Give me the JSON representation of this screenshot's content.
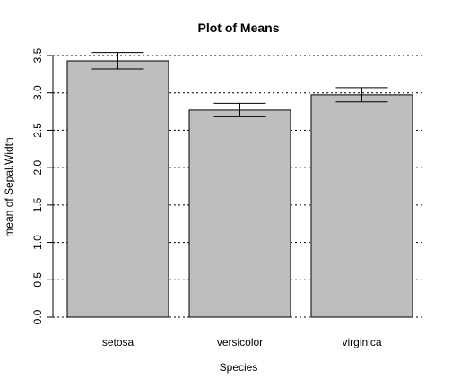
{
  "chart_data": {
    "type": "bar",
    "title": "Plot of Means",
    "xlabel": "Species",
    "ylabel": "mean of Sepal.Width",
    "categories": [
      "setosa",
      "versicolor",
      "virginica"
    ],
    "values": [
      3.428,
      2.77,
      2.974
    ],
    "error_low": [
      3.32,
      2.68,
      2.88
    ],
    "error_high": [
      3.54,
      2.86,
      3.07
    ],
    "ylim": [
      0,
      3.5
    ],
    "yticks": [
      "0.0",
      "0.5",
      "1.0",
      "1.5",
      "2.0",
      "2.5",
      "3.0",
      "3.5"
    ],
    "grid": true,
    "bar_color": "#bebebe"
  }
}
